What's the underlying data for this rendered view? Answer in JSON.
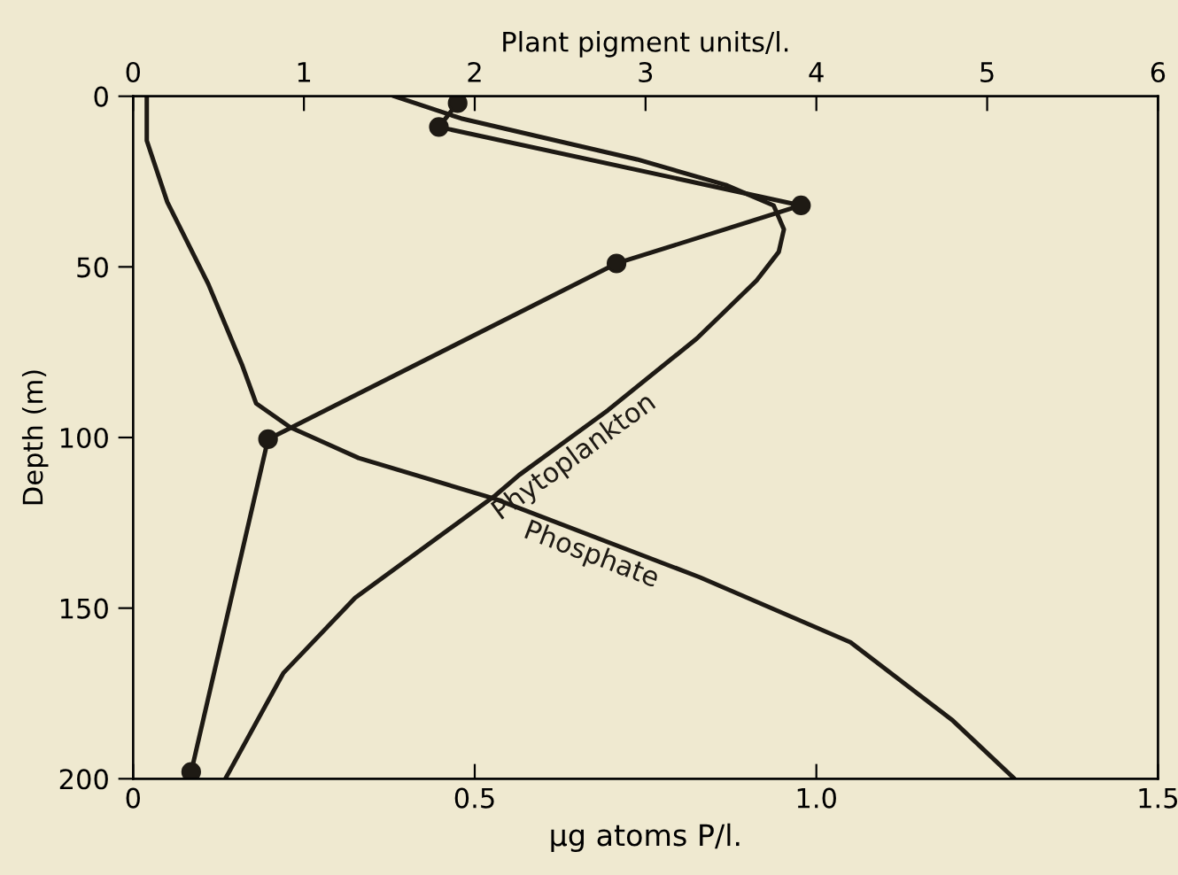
{
  "chart_data": {
    "type": "line",
    "xlabel": "μg atoms P/l.",
    "x2label": "Plant pigment units/l.",
    "ylabel": "Depth (m)",
    "xlim": [
      0,
      1.5
    ],
    "xticks": [
      0,
      0.5,
      {
        "value": 1,
        "label": "1.0"
      },
      1.5
    ],
    "x2lim": [
      0,
      6
    ],
    "x2ticks": [
      0,
      1,
      2,
      3,
      4,
      5,
      6
    ],
    "ylim": [
      200,
      0
    ],
    "yticks": [
      0,
      50,
      100,
      150,
      200
    ],
    "grid": false,
    "legend": false,
    "series": [
      {
        "name": "Phosphate",
        "color": "#1e1a14",
        "marker": "none",
        "x": [
          0.02,
          0.02,
          0.05,
          0.11,
          0.16,
          0.18,
          0.23,
          0.33,
          0.53,
          0.83,
          1.05,
          1.2,
          1.29
        ],
        "values": [
          0,
          13,
          31,
          55,
          79,
          90,
          97,
          106,
          118,
          141,
          160,
          183,
          200
        ]
      },
      {
        "name": "Phytoplankton",
        "color": "#1e1a14",
        "marker": "none",
        "axis": "x2",
        "x": [
          1.53,
          1.92,
          2.95,
          3.47,
          3.75,
          3.81,
          3.78,
          3.65,
          3.3,
          2.78,
          2.26,
          2.12,
          1.3,
          0.88,
          0.54
        ],
        "values": [
          0,
          6.5,
          18.5,
          26,
          32,
          39,
          45.6,
          54,
          71,
          92,
          111,
          117,
          147,
          169,
          200
        ]
      },
      {
        "color": "#1e1a14",
        "marker": "circle",
        "axis": "x2",
        "x": [
          1.9,
          1.79,
          3.91,
          2.83,
          0.79,
          0.34
        ],
        "values": [
          2,
          9,
          32,
          49,
          100.5,
          198
        ]
      }
    ]
  }
}
